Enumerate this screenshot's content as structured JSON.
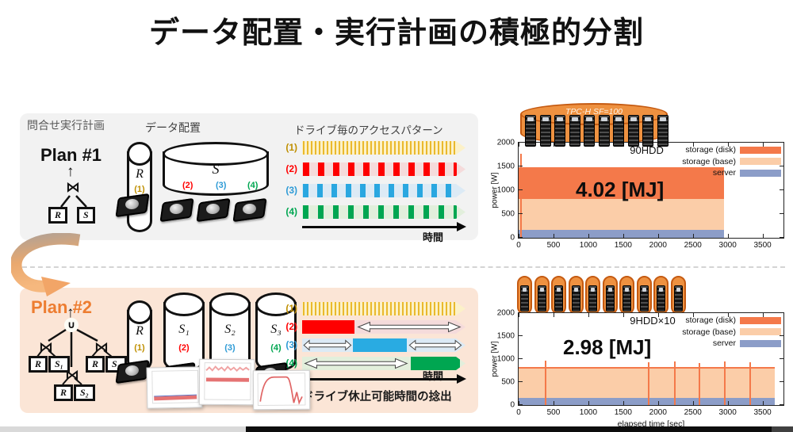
{
  "title": "データ配置・実行計画の積極的分割",
  "plan1": {
    "header": "問合せ実行計画",
    "name": "Plan #1",
    "data_label": "データ配置",
    "access_label": "ドライブ毎のアクセスパターン",
    "join_op": "⋈",
    "leaf_r": "R",
    "leaf_s": "S",
    "cyl_r": "R",
    "cyl_s": "S",
    "drives": [
      {
        "id": "(1)",
        "color": "#BF8F00"
      },
      {
        "id": "(2)",
        "color": "#FF0000"
      },
      {
        "id": "(3)",
        "color": "#2E9BD6"
      },
      {
        "id": "(4)",
        "color": "#00A651"
      }
    ],
    "time_label": "時間"
  },
  "plan2": {
    "name": "Plan #2",
    "accent": "#ED7D31",
    "union_op": "∪",
    "join_op": "⋈",
    "leaf_r": "R",
    "leaf_s1": "S₁",
    "leaf_s2": "S₂",
    "leaf_s3": "S₃",
    "cyl_r": "R",
    "cyl_s1": "S₁",
    "cyl_s2": "S₂",
    "cyl_s3": "S₃",
    "drives": [
      {
        "id": "(1)",
        "color": "#BF8F00"
      },
      {
        "id": "(2)",
        "color": "#FF0000"
      },
      {
        "id": "(3)",
        "color": "#2E9BD6"
      },
      {
        "id": "(4)",
        "color": "#00A651"
      }
    ],
    "time_label": "時間",
    "note": "✓ドライブ休止可能時間の捻出"
  },
  "cluster_top": {
    "label": "TPC-H SF=100",
    "rack_count": 10
  },
  "cluster_bottom": {
    "rack_count": 10
  },
  "chart_data": [
    {
      "type": "area",
      "title": "90HDD",
      "ylabel": "power [W]",
      "xlabel": "",
      "xlim": [
        0,
        3800
      ],
      "ylim": [
        0,
        2000
      ],
      "xticks": [
        0,
        500,
        1000,
        1500,
        2000,
        2500,
        3000,
        3500
      ],
      "yticks": [
        0,
        500,
        1000,
        1500,
        2000
      ],
      "legend": [
        {
          "label": "storage (disk)",
          "color": "#F4794A"
        },
        {
          "label": "storage (base)",
          "color": "#FBCDA8"
        },
        {
          "label": "server",
          "color": "#8C9DC8"
        }
      ],
      "annotation": "4.02 [MJ]",
      "x_end": 2950,
      "stacks": [
        {
          "name": "storage-disk",
          "top": 1480,
          "color": "#F4794A"
        },
        {
          "name": "storage-base",
          "top": 820,
          "color": "#FBCDA8"
        },
        {
          "name": "server",
          "top": 160,
          "color": "#8C9DC8"
        }
      ],
      "spikes": [
        {
          "x": 25,
          "top": 1760
        }
      ]
    },
    {
      "type": "area",
      "title": "9HDD×10",
      "ylabel": "power [W]",
      "xlabel": "elapsed time [sec]",
      "xlim": [
        0,
        3800
      ],
      "ylim": [
        0,
        2000
      ],
      "xticks": [
        0,
        500,
        1000,
        1500,
        2000,
        2500,
        3000,
        3500
      ],
      "yticks": [
        0,
        500,
        1000,
        1500,
        2000
      ],
      "legend": [
        {
          "label": "storage (disk)",
          "color": "#F4794A"
        },
        {
          "label": "storage (base)",
          "color": "#FBCDA8"
        },
        {
          "label": "server",
          "color": "#8C9DC8"
        }
      ],
      "annotation": "2.98 [MJ]",
      "x_end": 3680,
      "stacks": [
        {
          "name": "storage-disk",
          "top": 830,
          "color": "#F4794A"
        },
        {
          "name": "storage-base",
          "top": 790,
          "color": "#FBCDA8"
        },
        {
          "name": "server",
          "top": 160,
          "color": "#8C9DC8"
        }
      ],
      "spikes": [
        {
          "x": 380,
          "top": 960
        },
        {
          "x": 1850,
          "top": 930
        },
        {
          "x": 2230,
          "top": 950
        },
        {
          "x": 2580,
          "top": 920
        },
        {
          "x": 2950,
          "top": 945
        },
        {
          "x": 3310,
          "top": 930
        }
      ]
    }
  ]
}
